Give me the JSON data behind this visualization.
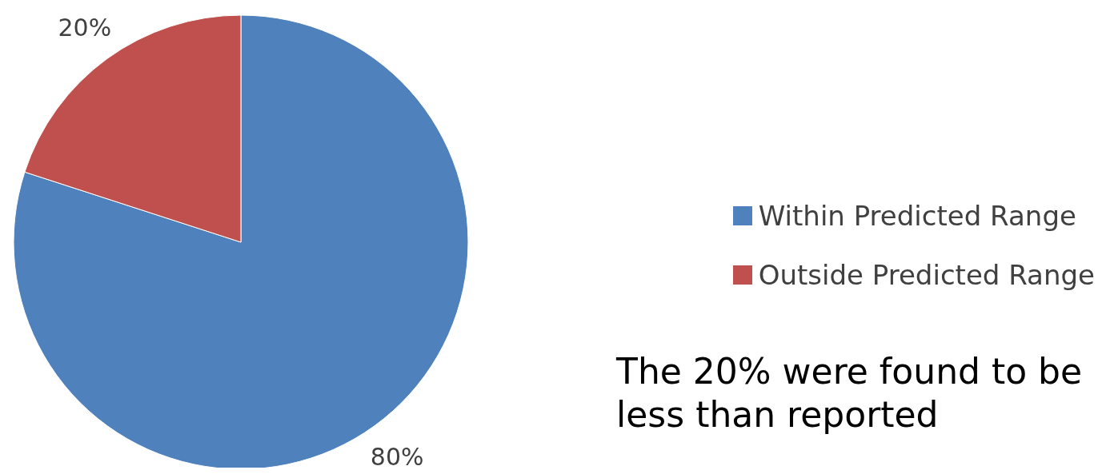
{
  "chart_data": {
    "type": "pie",
    "categories": [
      "Within Predicted Range",
      "Outside Predicted Range"
    ],
    "values": [
      80,
      20
    ],
    "colors": [
      "#4f81bd",
      "#c0504d"
    ],
    "value_labels": [
      "80%",
      "20%"
    ],
    "legend": "right",
    "annotations": [
      "The 20% were found to be less than reported"
    ]
  }
}
